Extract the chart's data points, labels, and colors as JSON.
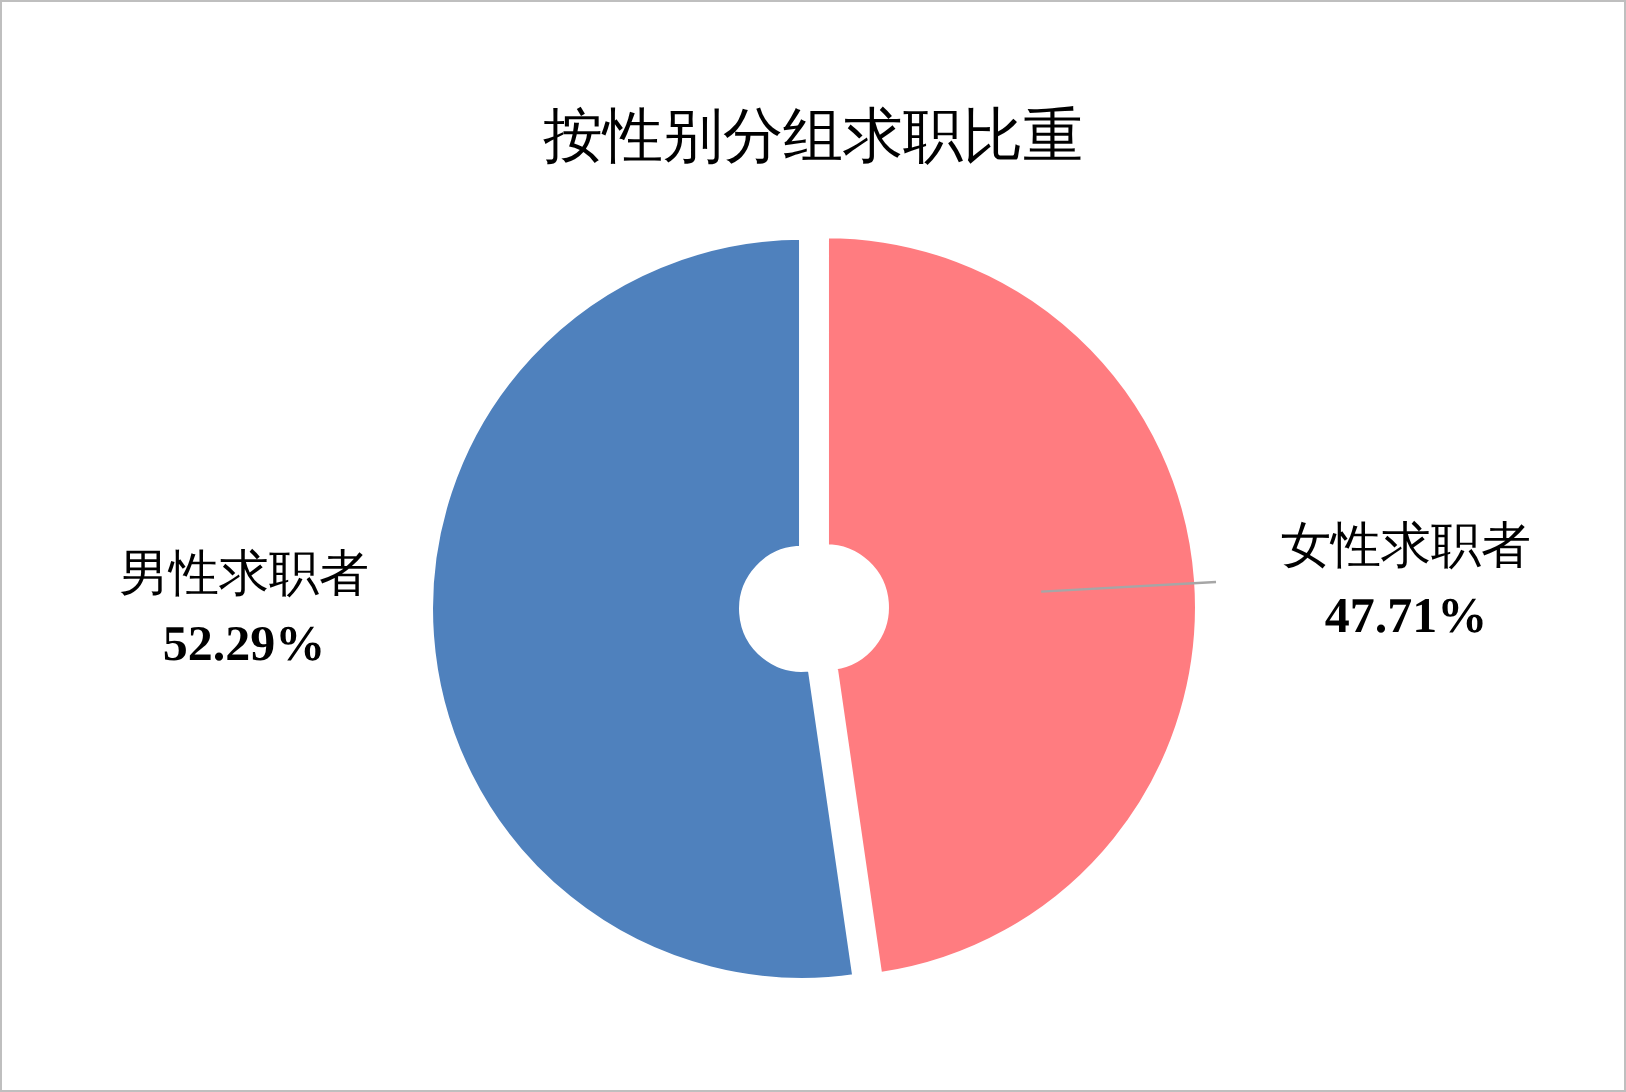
{
  "chart_data": {
    "type": "donut",
    "title": "按性别分组求职比重",
    "categories": [
      "男性求职者",
      "女性求职者"
    ],
    "values": [
      52.29,
      47.71
    ],
    "colors": [
      "#4f81bd",
      "#ff7c80"
    ],
    "value_labels": [
      "52.29%",
      "47.71%"
    ],
    "legend": false
  }
}
